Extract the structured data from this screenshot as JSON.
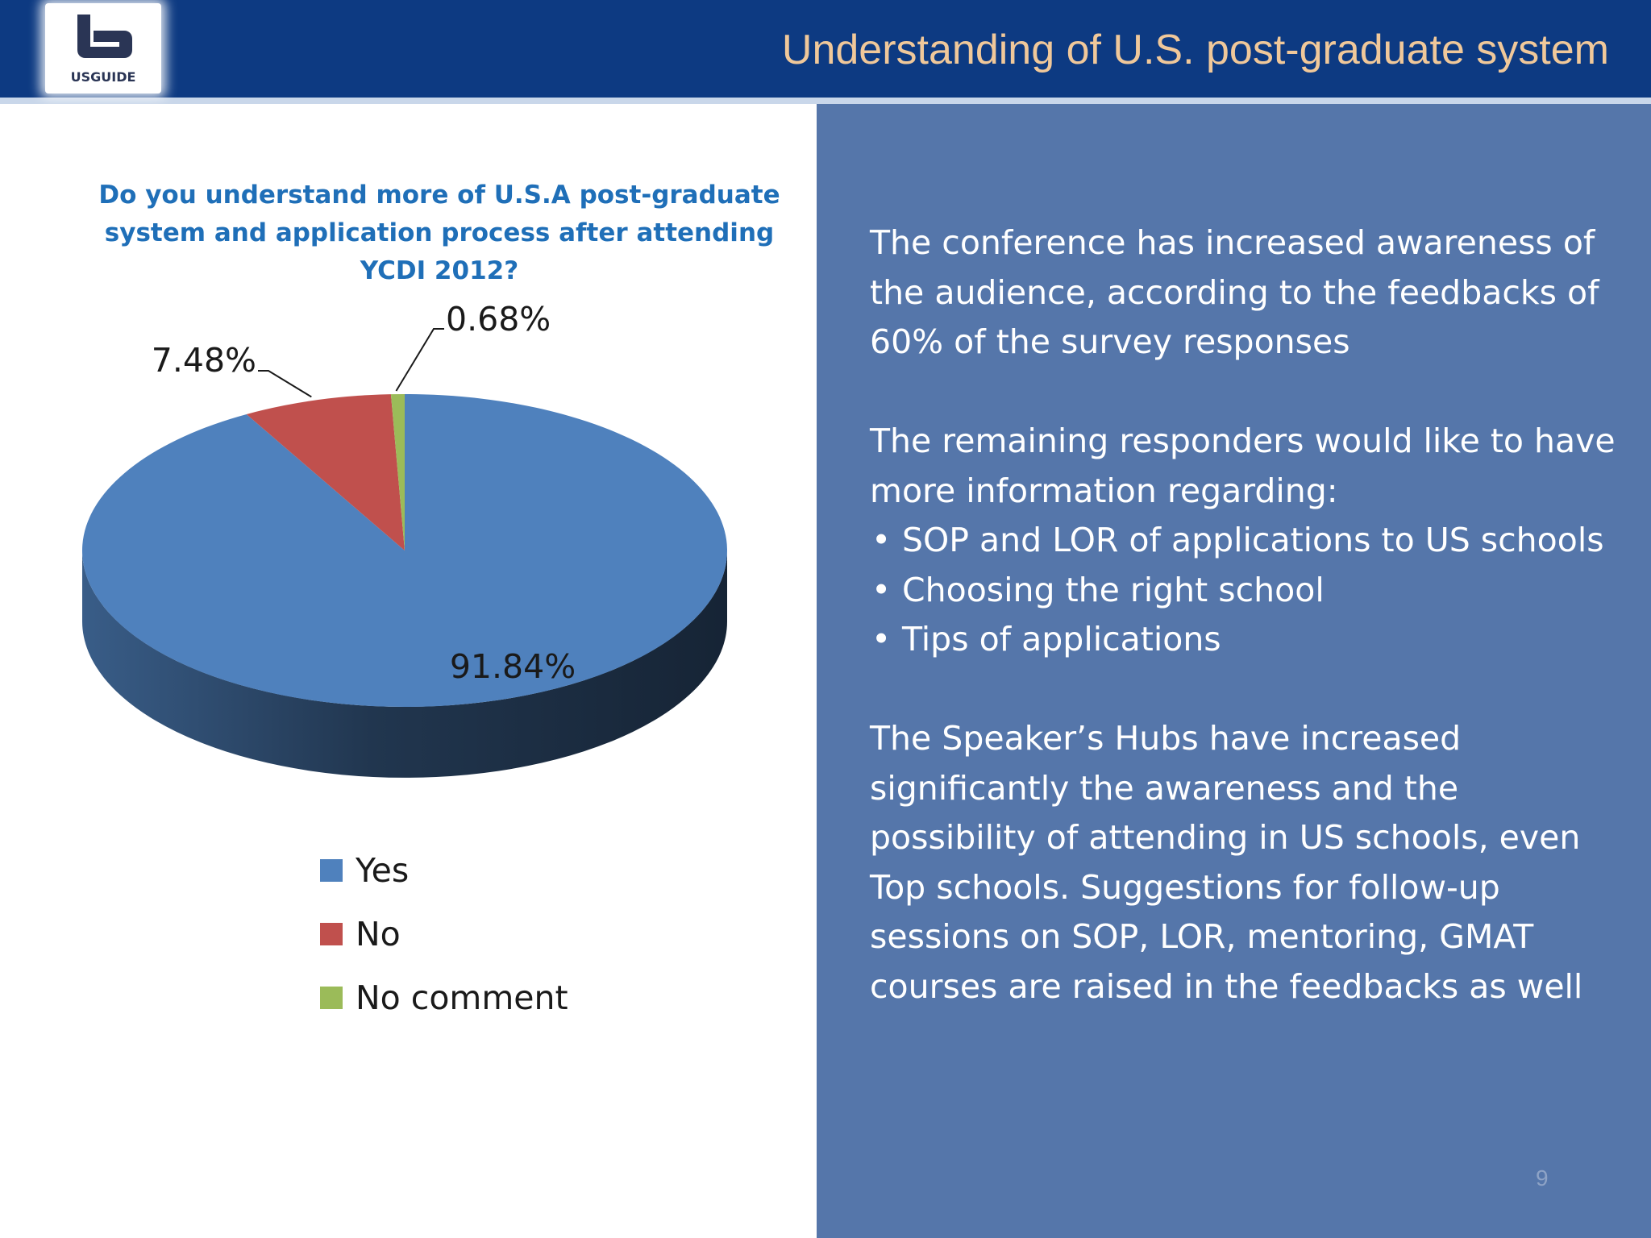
{
  "header": {
    "title": "Understanding of U.S. post-graduate system",
    "logo_text": "USGUIDE",
    "background": "#0d3a82",
    "title_color": "#f0c89a"
  },
  "chart_data": {
    "type": "pie",
    "title": "Do you understand more of U.S.A post-graduate system and application process after attending YCDI 2012?",
    "categories": [
      "Yes",
      "No",
      "No comment"
    ],
    "values": [
      91.84,
      7.48,
      0.68
    ],
    "data_labels": [
      "91.84%",
      "7.48%",
      "0.68%"
    ],
    "colors": [
      "#4f81bd",
      "#c0504d",
      "#9bbb59"
    ],
    "legend": "bottom",
    "style": "3d"
  },
  "panel": {
    "background": "#5576aa",
    "para1": "The conference has increased awareness of the audience, according to the feedbacks of 60% of the survey responses",
    "para2": "The remaining responders would like to have more information regarding:",
    "bullets": [
      "SOP and LOR of applications to US schools",
      "Choosing the right school",
      "Tips of applications"
    ],
    "para3": "The Speaker’s Hubs have increased significantly the awareness and the possibility of attending in US schools, even Top schools. Suggestions for follow-up sessions on SOP, LOR, mentoring, GMAT courses are raised in the feedbacks as well"
  },
  "page_number": "9"
}
